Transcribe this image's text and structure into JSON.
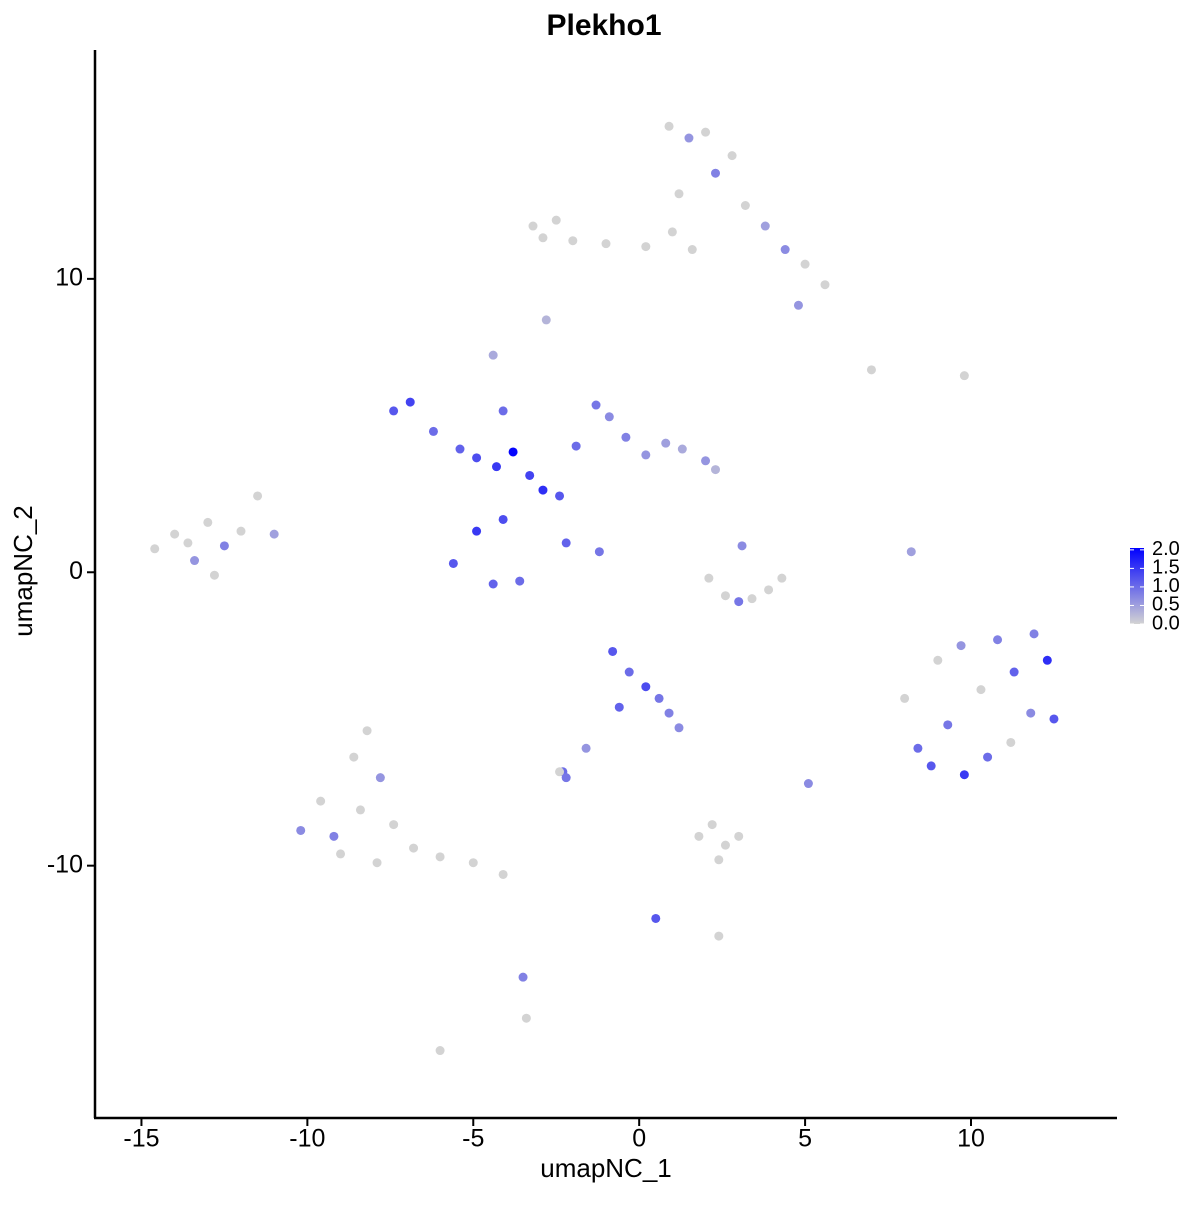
{
  "chart_data": {
    "type": "scatter",
    "title": "Plekho1",
    "x_label": "umapNC_1",
    "y_label": "umapNC_2",
    "xlim": [
      -16.4,
      14.4
    ],
    "ylim": [
      -18.6,
      17.8
    ],
    "xticks": [
      -15,
      -10,
      -5,
      0,
      5,
      10
    ],
    "yticks": [
      -10,
      0,
      10
    ],
    "color_low": "#d3d3d3",
    "color_high": "#0000ff",
    "color_lim": [
      0,
      2.05
    ],
    "color_ticks": [
      {
        "value": 0,
        "label": "0.0"
      },
      {
        "value": 0.5,
        "label": "0.5"
      },
      {
        "value": 1,
        "label": "1.0"
      },
      {
        "value": 1.5,
        "label": "1.5"
      },
      {
        "value": 2,
        "label": "2.0"
      }
    ],
    "x": [
      0.9,
      1.5,
      2.0,
      2.3,
      1.2,
      2.8,
      3.2,
      3.8,
      4.4,
      5.0,
      5.6,
      4.8,
      -3.2,
      -2.9,
      -2.5,
      -2.0,
      -1.0,
      0.2,
      1.0,
      1.6,
      -7.4,
      -6.9,
      -6.2,
      -5.4,
      -4.9,
      -4.3,
      -3.8,
      -3.3,
      -2.9,
      -2.4,
      -1.9,
      -1.3,
      -0.9,
      -0.4,
      0.2,
      0.8,
      1.3,
      2.0,
      2.3,
      -4.9,
      -4.1,
      -5.6,
      -3.6,
      -4.4,
      -4.4,
      -4.1,
      -2.2,
      -1.2,
      -14.6,
      -14.0,
      -13.4,
      -13.0,
      -12.5,
      -12.0,
      -11.5,
      -11.0,
      -12.8,
      -13.6,
      2.1,
      2.6,
      3.0,
      3.4,
      3.9,
      4.3,
      3.1,
      8.0,
      8.4,
      8.8,
      9.3,
      9.8,
      10.3,
      10.8,
      11.3,
      11.8,
      12.3,
      12.5,
      9.0,
      9.7,
      10.5,
      11.2,
      11.9,
      -0.8,
      -0.3,
      0.2,
      0.6,
      0.9,
      1.2,
      -0.6,
      -1.6,
      -2.3,
      -10.2,
      -9.6,
      -9.0,
      -8.6,
      -8.2,
      -7.8,
      -7.4,
      -7.9,
      -9.2,
      -8.4,
      -6.8,
      -6.0,
      -5.0,
      -4.1,
      1.8,
      2.2,
      2.6,
      3.0,
      2.4,
      -6.0,
      -3.5,
      -3.4,
      0.5,
      -2.4,
      -2.2,
      5.1,
      -2.8,
      7.0,
      9.8,
      8.2,
      2.4
    ],
    "y": [
      15.2,
      14.8,
      15.0,
      13.6,
      12.9,
      14.2,
      12.5,
      11.8,
      11.0,
      10.5,
      9.8,
      9.1,
      11.8,
      11.4,
      12.0,
      11.3,
      11.2,
      11.1,
      11.6,
      11.0,
      5.5,
      5.8,
      4.8,
      4.2,
      3.9,
      3.6,
      4.1,
      3.3,
      2.8,
      2.6,
      4.3,
      5.7,
      5.3,
      4.6,
      4.0,
      4.4,
      4.2,
      3.8,
      3.5,
      1.4,
      1.8,
      0.3,
      -0.3,
      -0.4,
      7.4,
      5.5,
      1.0,
      0.7,
      0.8,
      1.3,
      0.4,
      1.7,
      0.9,
      1.4,
      2.6,
      1.3,
      -0.1,
      1.0,
      -0.2,
      -0.8,
      -1.0,
      -0.9,
      -0.6,
      -0.2,
      0.9,
      -4.3,
      -6.0,
      -6.6,
      -5.2,
      -6.9,
      -4.0,
      -2.3,
      -3.4,
      -4.8,
      -3.0,
      -5.0,
      -3.0,
      -2.5,
      -6.3,
      -5.8,
      -2.1,
      -2.7,
      -3.4,
      -3.9,
      -4.3,
      -4.8,
      -5.3,
      -4.6,
      -6.0,
      -6.8,
      -8.8,
      -7.8,
      -9.6,
      -6.3,
      -5.4,
      -7.0,
      -8.6,
      -9.9,
      -9.0,
      -8.1,
      -9.4,
      -9.7,
      -9.9,
      -10.3,
      -9.0,
      -8.6,
      -9.3,
      -9.0,
      -9.8,
      -16.3,
      -13.8,
      -15.2,
      -11.8,
      -6.8,
      -7.0,
      -7.2,
      8.6,
      6.9,
      6.7,
      0.7,
      -12.4
    ],
    "values": [
      0,
      0.6,
      0,
      0.8,
      0,
      0,
      0,
      0.5,
      0.7,
      0,
      0,
      0.6,
      0,
      0,
      0,
      0,
      0,
      0,
      0,
      0,
      1.2,
      1.4,
      1.0,
      1.1,
      1.3,
      1.5,
      2.0,
      1.4,
      1.6,
      1.2,
      1.0,
      0.9,
      0.7,
      0.8,
      0.6,
      0.5,
      0.4,
      0.6,
      0.3,
      1.5,
      1.3,
      1.2,
      1.0,
      1.1,
      0.4,
      1.0,
      1.1,
      0.9,
      0,
      0,
      0.6,
      0,
      0.8,
      0,
      0,
      0.5,
      0,
      0,
      0,
      0,
      0.9,
      0,
      0,
      0,
      0.7,
      0,
      1.0,
      1.2,
      0.9,
      1.5,
      0,
      0.8,
      1.1,
      0.7,
      1.6,
      1.2,
      0,
      0.6,
      1.0,
      0,
      0.8,
      1.2,
      1.0,
      1.3,
      0.9,
      0.8,
      0.7,
      1.1,
      0.6,
      1.0,
      0.7,
      0,
      0,
      0,
      0,
      0.6,
      0,
      0,
      0.8,
      0,
      0,
      0,
      0,
      0,
      0,
      0,
      0,
      0,
      0,
      0,
      0.8,
      0,
      1.2,
      0,
      0.9,
      0.7,
      0.3,
      0,
      0,
      0.5,
      0
    ]
  }
}
